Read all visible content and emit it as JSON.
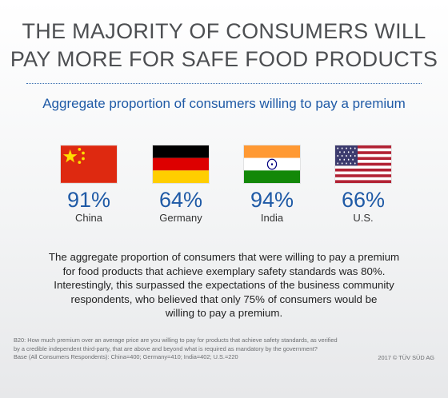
{
  "title_line1": "THE MAJORITY OF CONSUMERS WILL",
  "title_line2": "PAY MORE FOR SAFE FOOD PRODUCTS",
  "subtitle": "Aggregate proportion of consumers willing to pay a premium",
  "chart_data": {
    "type": "table",
    "title": "Aggregate proportion of consumers willing to pay a premium",
    "categories": [
      "China",
      "Germany",
      "India",
      "U.S."
    ],
    "values": [
      91,
      64,
      94,
      66
    ],
    "labels": [
      "91%",
      "64%",
      "94%",
      "66%"
    ],
    "unit": "%"
  },
  "countries": [
    {
      "name": "China",
      "percent": "91%",
      "flag": "china-flag-icon"
    },
    {
      "name": "Germany",
      "percent": "64%",
      "flag": "germany-flag-icon"
    },
    {
      "name": "India",
      "percent": "94%",
      "flag": "india-flag-icon"
    },
    {
      "name": "U.S.",
      "percent": "66%",
      "flag": "usa-flag-icon"
    }
  ],
  "body_lines": [
    "The aggregate proportion of consumers that were willing to pay a premium",
    "for food products that achieve exemplary safety standards was 80%.",
    "Interestingly, this surpassed the expectations of the business community",
    "respondents, who believed that only 75% of consumers would be",
    "willing to pay a premium."
  ],
  "footnote_lines": [
    "B20: How much premium over an average price are you willing to pay for products that achieve safety standards, as verified",
    "by a credible independent third-party, that are above and beyond what is required as mandatory by the government?",
    "Base (All Consumers Respondents): China=400; Germany=410; India=402; U.S.=220"
  ],
  "copyright": "2017 © TÜV SÜD AG",
  "colors": {
    "title": "#4d4f52",
    "accent_blue": "#1f5aa6",
    "body_text": "#222222",
    "footnote": "#6b6d70"
  }
}
